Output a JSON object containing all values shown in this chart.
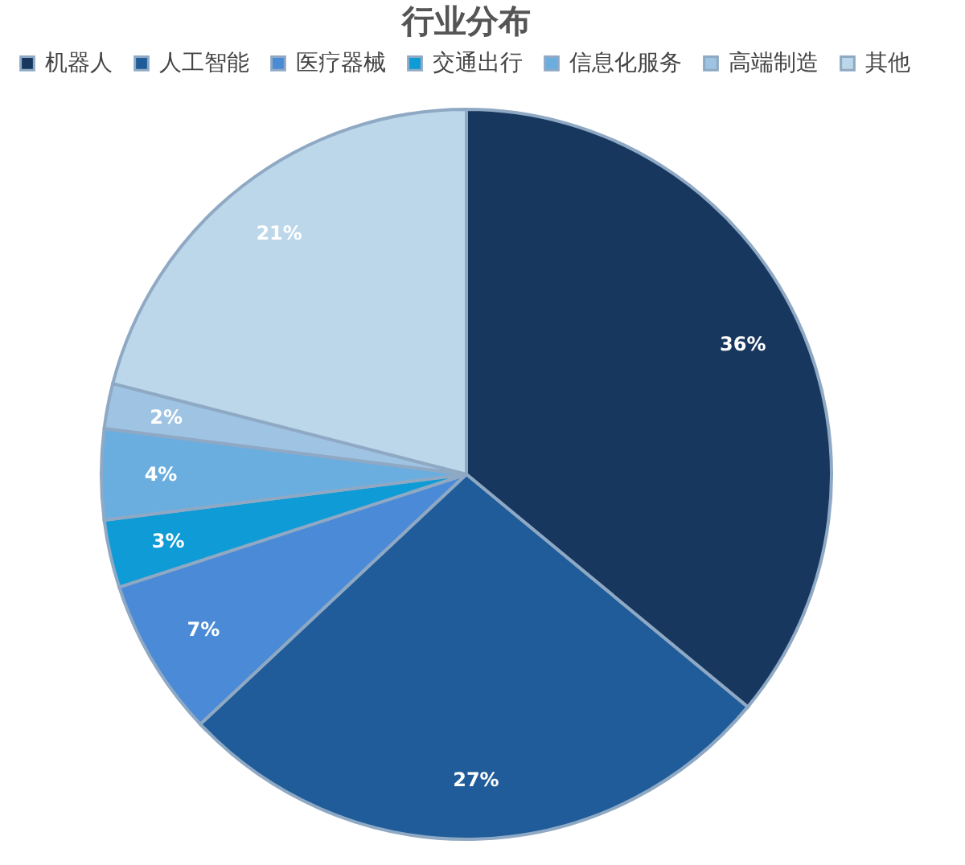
{
  "chart_data": {
    "type": "pie",
    "title": "行业分布",
    "categories": [
      "机器人",
      "人工智能",
      "医疗器械",
      "交通出行",
      "信息化服务",
      "高端制造",
      "其他"
    ],
    "values": [
      36,
      27,
      7,
      3,
      4,
      2,
      21
    ],
    "value_labels": [
      "36%",
      "27%",
      "7%",
      "3%",
      "4%",
      "2%",
      "21%"
    ],
    "colors": [
      "#17375e",
      "#1f5c99",
      "#4a8ad6",
      "#0e9bd6",
      "#6aaee0",
      "#9fc3e3",
      "#bcd6ea"
    ],
    "legend": "top"
  }
}
